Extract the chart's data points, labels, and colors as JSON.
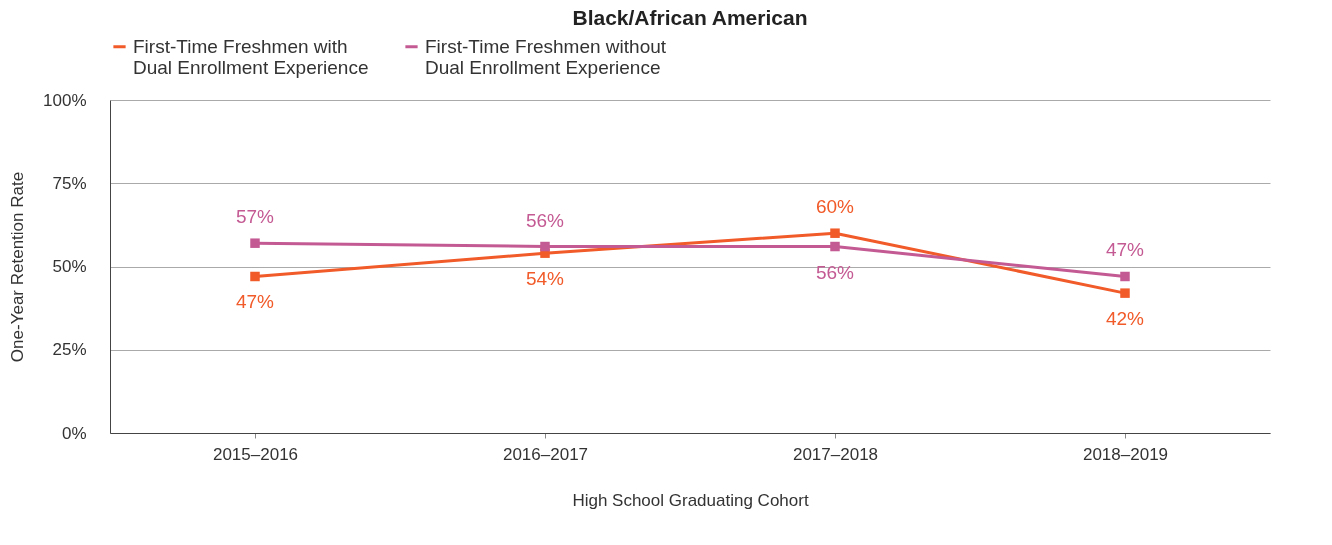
{
  "chart_data": {
    "type": "line",
    "title": "Black/African American",
    "xlabel": "High School Graduating Cohort",
    "ylabel": "One-Year Retention Rate",
    "categories": [
      "2015–2016",
      "2016–2017",
      "2017–2018",
      "2018–2019"
    ],
    "series": [
      {
        "name": "First-Time Freshmen with Dual Enrollment Experience",
        "color": "#f15a29",
        "values": [
          47,
          54,
          60,
          42
        ],
        "value_labels": [
          "47%",
          "54%",
          "60%",
          "42%"
        ]
      },
      {
        "name": "First-Time Freshmen without Dual Enrollment Experience",
        "color": "#c45a93",
        "values": [
          57,
          56,
          56,
          47
        ],
        "value_labels": [
          "57%",
          "56%",
          "56%",
          "47%"
        ]
      }
    ],
    "ylim": [
      0,
      100
    ],
    "yticks": [
      {
        "value": 0,
        "label": "0%"
      },
      {
        "value": 25,
        "label": "25%"
      },
      {
        "value": 50,
        "label": "50%"
      },
      {
        "value": 75,
        "label": "75%"
      },
      {
        "value": 100,
        "label": "100%"
      }
    ],
    "grid": "y",
    "legend": "top",
    "marker": "square",
    "line_style": "solid"
  }
}
